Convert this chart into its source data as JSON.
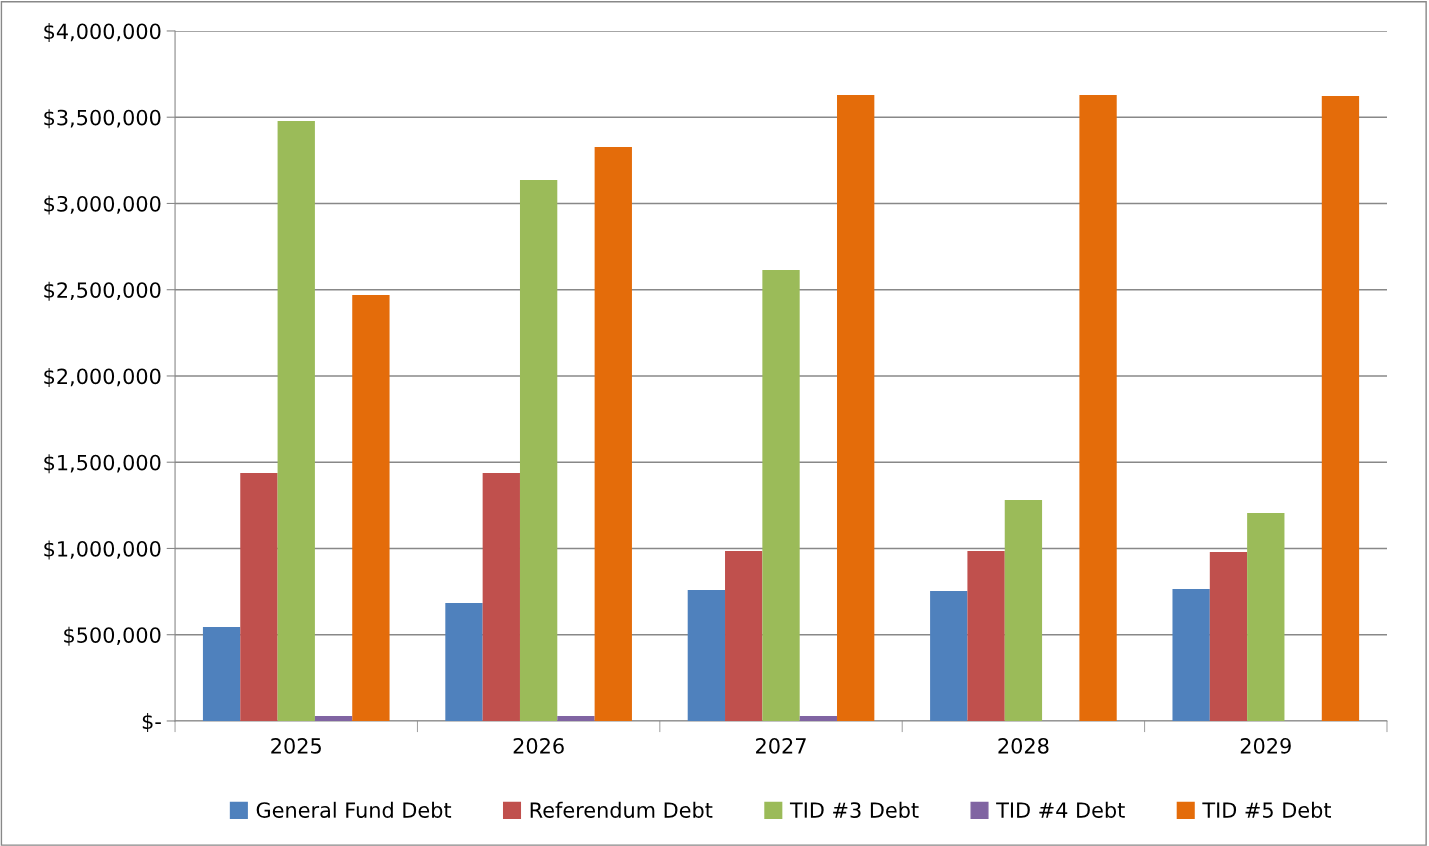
{
  "chart_data": {
    "type": "bar",
    "categories": [
      "2025",
      "2026",
      "2027",
      "2028",
      "2029"
    ],
    "series": [
      {
        "name": "General Fund Debt",
        "color": "#4f81bd",
        "values": [
          545000,
          684000,
          759000,
          754000,
          765000
        ]
      },
      {
        "name": "Referendum Debt",
        "color": "#c0504d",
        "values": [
          1438000,
          1438000,
          986000,
          986000,
          980000
        ]
      },
      {
        "name": "TID #3 Debt",
        "color": "#9bbb59",
        "values": [
          3478000,
          3136000,
          2614000,
          1281000,
          1206000
        ]
      },
      {
        "name": "TID #4 Debt",
        "color": "#8064a2",
        "values": [
          29000,
          29000,
          29000,
          0,
          0
        ]
      },
      {
        "name": "TID #5 Debt",
        "color": "#e46c0a",
        "values": [
          2470000,
          3328000,
          3629000,
          3629000,
          3623000
        ]
      }
    ],
    "ylim": [
      0,
      4000000
    ],
    "yticks": [
      {
        "value": 0,
        "label": "$-"
      },
      {
        "value": 500000,
        "label": "$500,000"
      },
      {
        "value": 1000000,
        "label": "$1,000,000"
      },
      {
        "value": 1500000,
        "label": "$1,500,000"
      },
      {
        "value": 2000000,
        "label": "$2,000,000"
      },
      {
        "value": 2500000,
        "label": "$2,500,000"
      },
      {
        "value": 3000000,
        "label": "$3,000,000"
      },
      {
        "value": 3500000,
        "label": "$3,500,000"
      },
      {
        "value": 4000000,
        "label": "$4,000,000"
      }
    ],
    "grid": "y",
    "legend": "bottom"
  }
}
